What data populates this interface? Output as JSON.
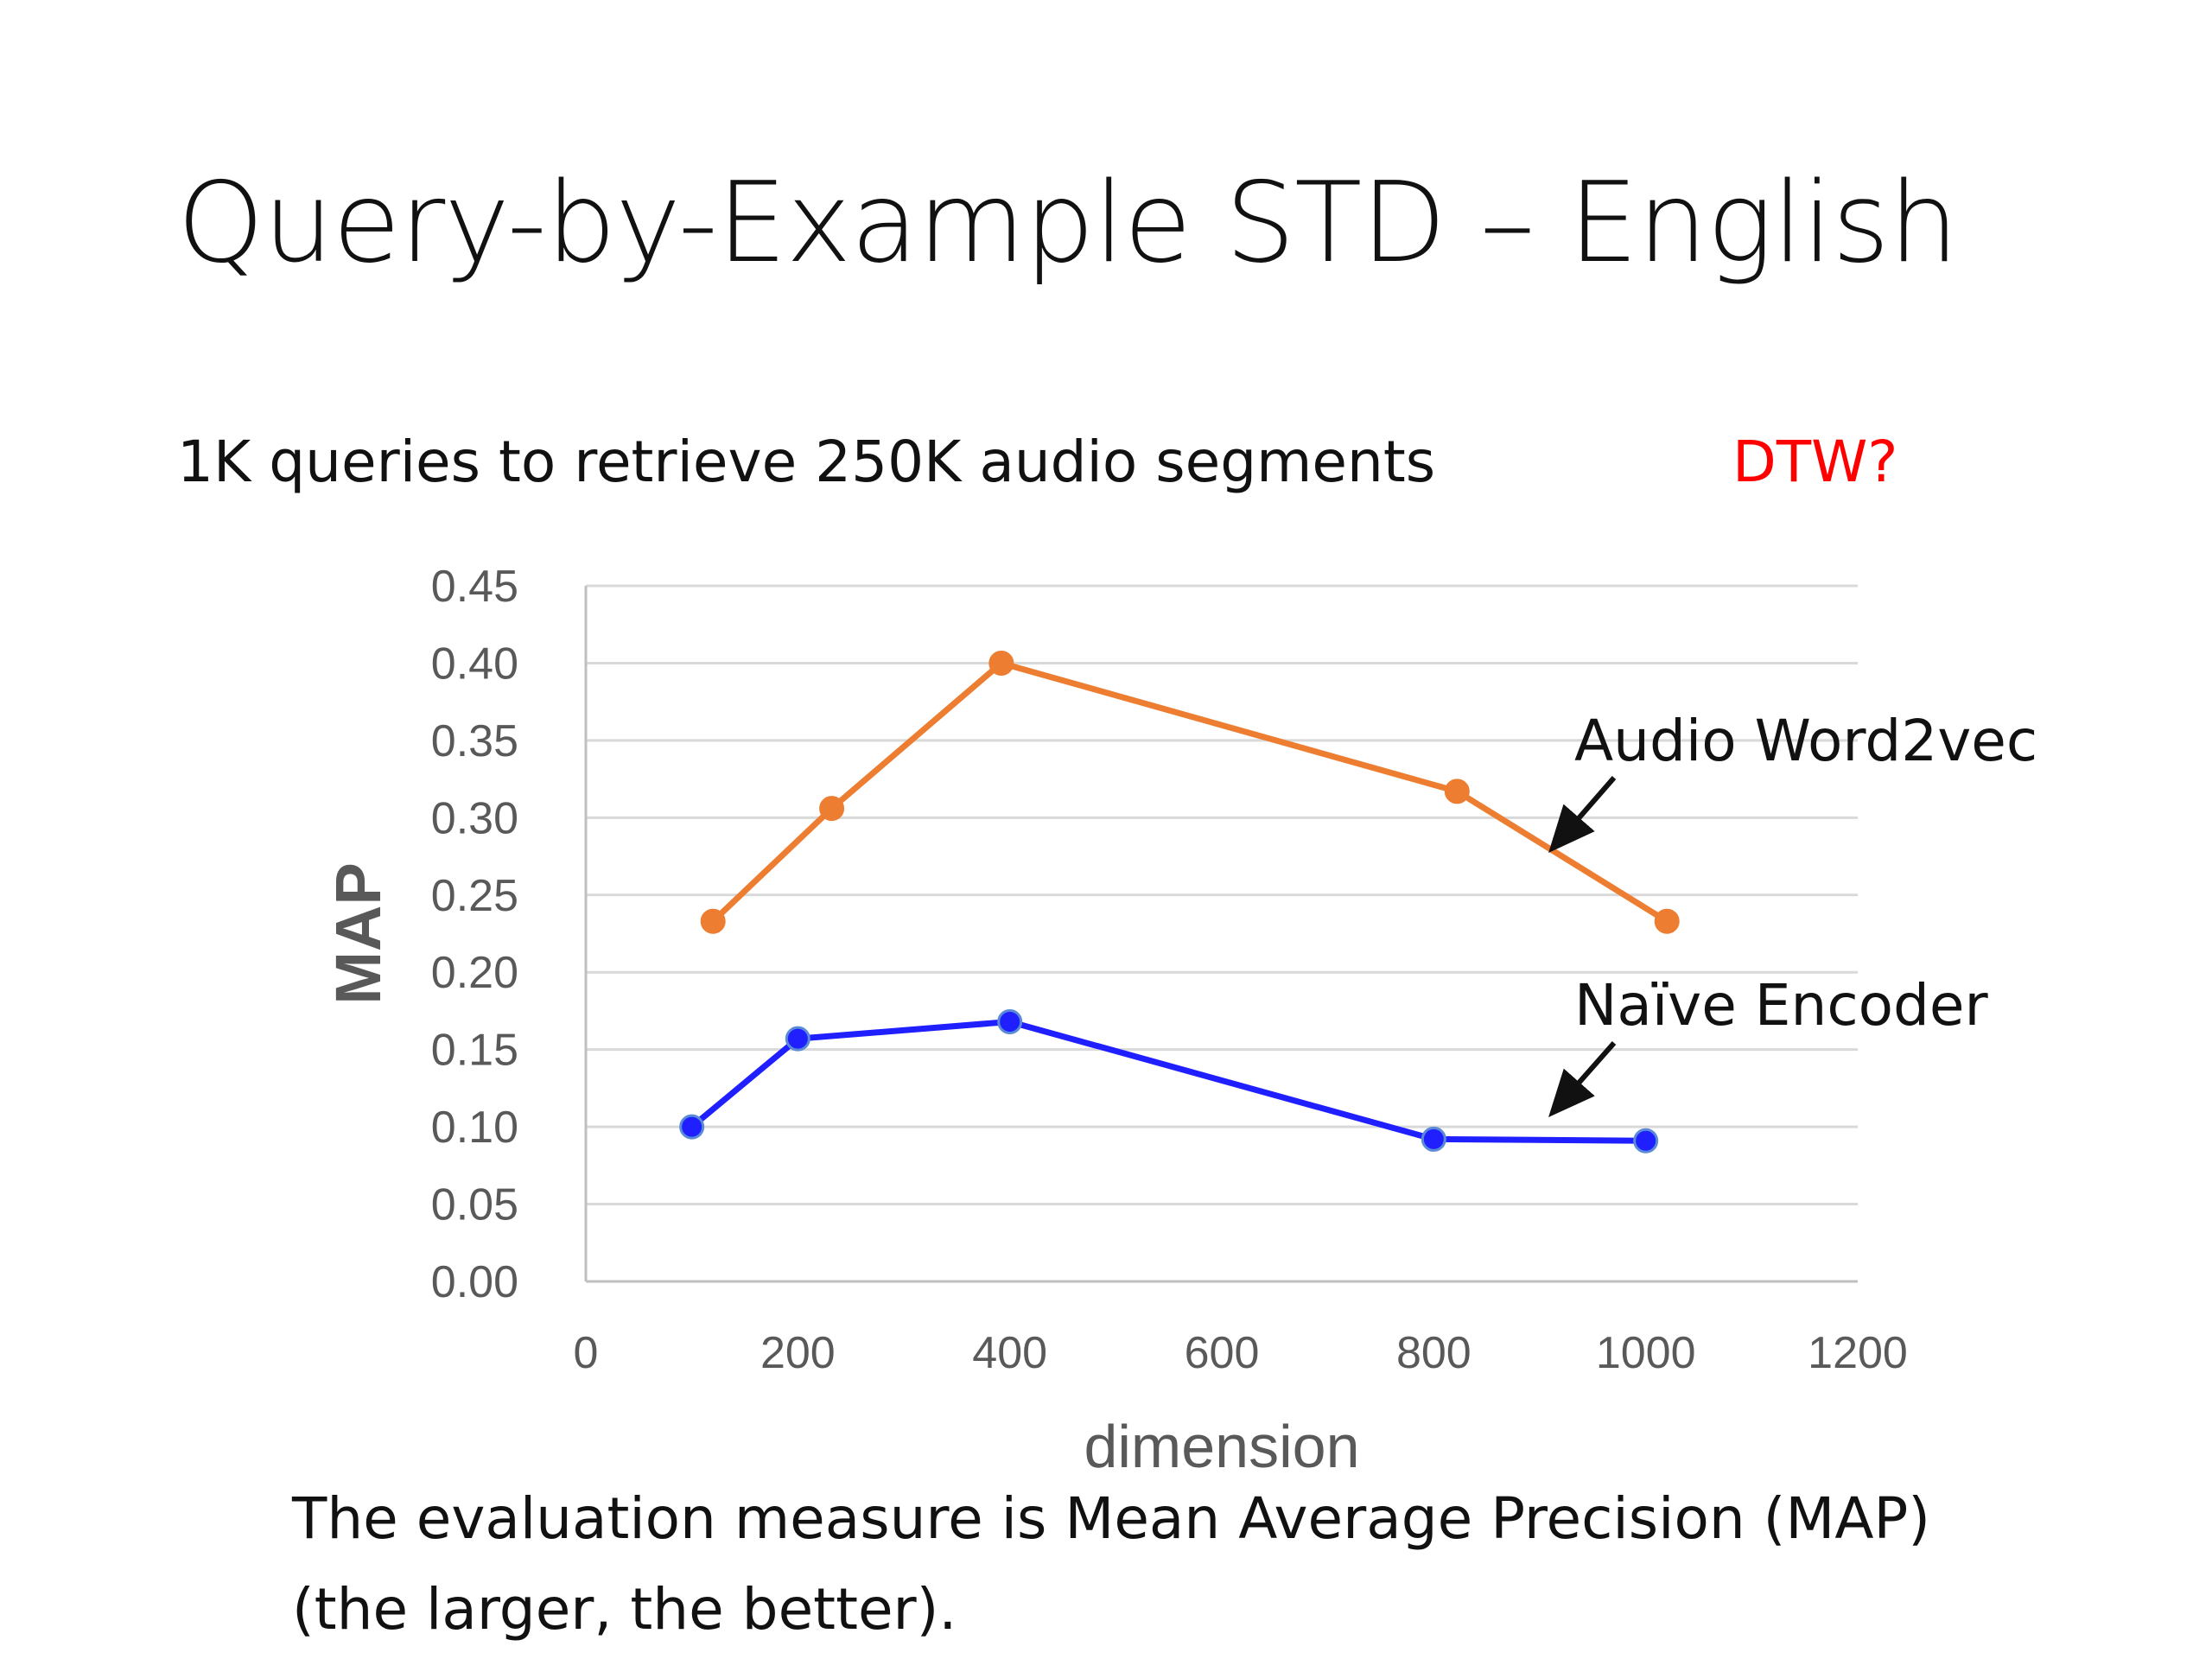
{
  "slide": {
    "title": "Query-by-Example STD – English",
    "subtitle": "1K queries to retrieve 250K audio segments",
    "dtw_note": "DTW?",
    "dtw_color": "#ff0000",
    "bottom_line1": "The evaluation measure is Mean Average Precision (MAP)",
    "bottom_line2": "(the larger, the better)."
  },
  "chart_data": {
    "type": "line",
    "title": "",
    "xlabel": "dimension",
    "ylabel": "MAP",
    "xlim": [
      0,
      1200
    ],
    "ylim": [
      0,
      0.45
    ],
    "xticks": [
      "0",
      "200",
      "400",
      "600",
      "800",
      "1000",
      "1200"
    ],
    "yticks": [
      "0.00",
      "0.05",
      "0.10",
      "0.15",
      "0.20",
      "0.25",
      "0.30",
      "0.35",
      "0.40",
      "0.45"
    ],
    "grid": "horizontal",
    "series": [
      {
        "name": "Audio Word2vec",
        "color": "#ed7d31",
        "points": [
          [
            120,
            0.233
          ],
          [
            232,
            0.306
          ],
          [
            392,
            0.4
          ],
          [
            822,
            0.317
          ],
          [
            1020,
            0.233
          ]
        ]
      },
      {
        "name": "Naïve Encoder",
        "color": "#1f1fff",
        "points": [
          [
            100,
            0.1
          ],
          [
            200,
            0.157
          ],
          [
            400,
            0.168
          ],
          [
            800,
            0.092
          ],
          [
            1000,
            0.091
          ]
        ]
      }
    ],
    "annotations": [
      {
        "text": "Audio Word2vec",
        "series": 0
      },
      {
        "text": "Naïve Encoder",
        "series": 1
      }
    ]
  }
}
